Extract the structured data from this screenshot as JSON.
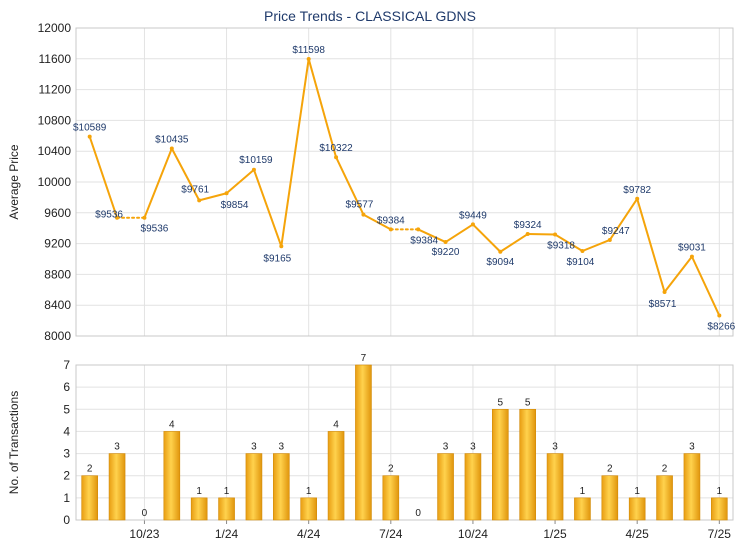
{
  "chart_data": [
    {
      "type": "line",
      "title": "Price Trends - CLASSICAL GDNS",
      "ylabel": "Average Price",
      "ylim": [
        8000,
        12000
      ],
      "yticks": [
        8000,
        8400,
        8800,
        9200,
        9600,
        10000,
        10400,
        10800,
        11200,
        11600,
        12000
      ],
      "grid": true,
      "line_color": "#f5a40a",
      "labels": [
        "$10589",
        "$9536",
        "$9536",
        "$10435",
        "$9761",
        "$9854",
        "$10159",
        "$9165",
        "$11598",
        "$10322",
        "$9577",
        "$9384",
        "$9384",
        "$9220",
        "$9449",
        "$9094",
        "$9324",
        "$9318",
        "$9104",
        "$9247",
        "$9782",
        "$8571",
        "$9031",
        "$8266"
      ],
      "values": [
        10589,
        9536,
        9536,
        10435,
        9761,
        9854,
        10159,
        9165,
        11598,
        10322,
        9577,
        9384,
        9384,
        9220,
        9449,
        9094,
        9324,
        9318,
        9104,
        9247,
        9782,
        8571,
        9031,
        8266
      ],
      "segments_dashed_after": [
        1,
        11
      ]
    },
    {
      "type": "bar",
      "ylabel": "No. of Transactions",
      "ylim": [
        0,
        7
      ],
      "yticks": [
        0,
        1,
        2,
        3,
        4,
        5,
        6,
        7
      ],
      "grid": true,
      "bar_color": "#f2b320",
      "categories_labeled": [
        "10/23",
        "1/24",
        "4/24",
        "7/24",
        "10/24",
        "1/25",
        "4/25",
        "7/25"
      ],
      "label_positions": [
        2.5,
        5.5,
        8.5,
        11.5,
        14.5,
        17.5,
        20.5,
        23.5
      ],
      "values": [
        2,
        3,
        0,
        4,
        1,
        1,
        3,
        3,
        1,
        4,
        7,
        2,
        0,
        3,
        3,
        5,
        5,
        3,
        1,
        2,
        1,
        2,
        3,
        1
      ],
      "labels": [
        "2",
        "3",
        "0",
        "4",
        "1",
        "1",
        "3",
        "3",
        "1",
        "4",
        "7",
        "2",
        "0",
        "3",
        "3",
        "5",
        "5",
        "3",
        "1",
        "2",
        "1",
        "2",
        "3",
        "1"
      ]
    }
  ]
}
